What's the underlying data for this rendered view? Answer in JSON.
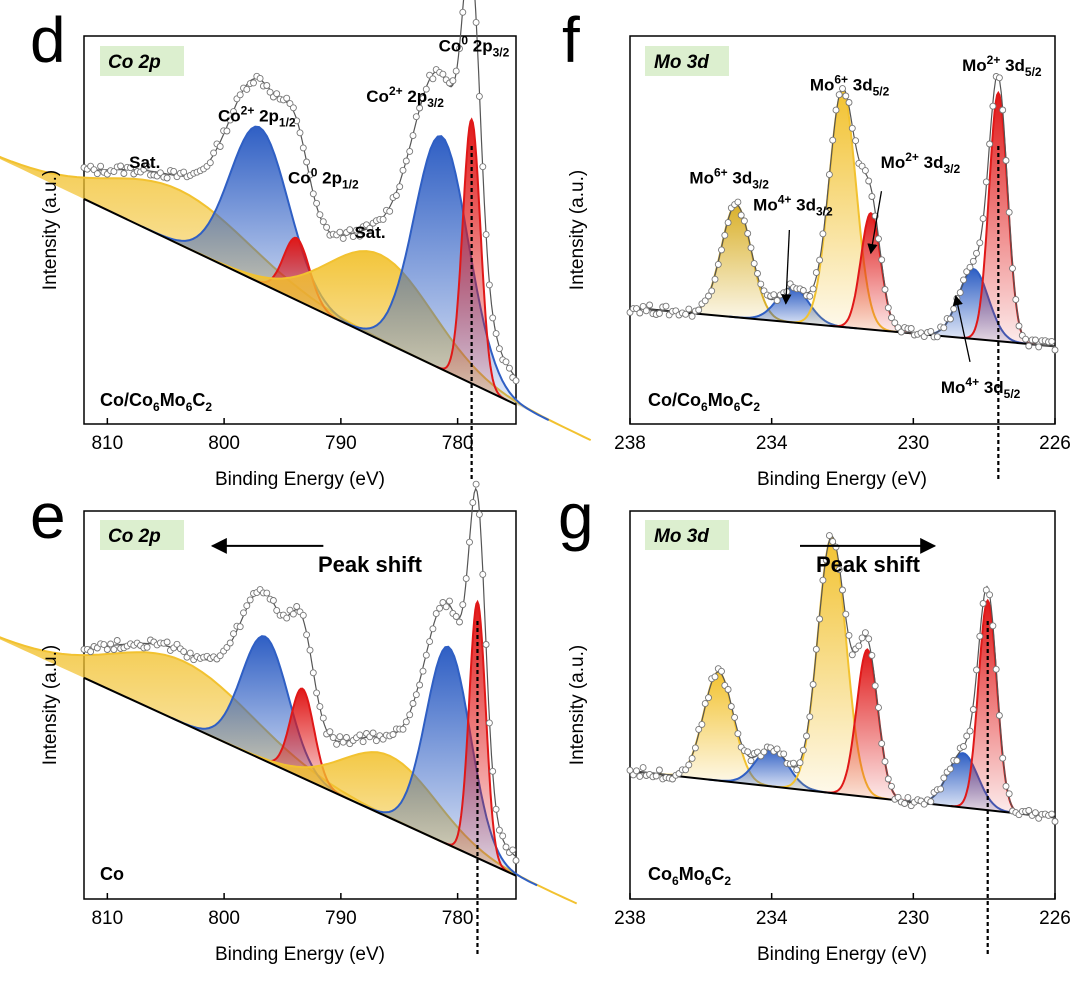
{
  "chart_data": [
    {
      "type": "xps",
      "panel": "d",
      "region_tag": "Co 2p",
      "sample_label": "Co/Co6Mo6C2",
      "xlabel": "Binding Energy (eV)",
      "ylabel": "Intensity (a.u.)",
      "xlim": [
        812,
        775
      ],
      "ylim": [
        0,
        1
      ],
      "xticks": [
        "810",
        "800",
        "790",
        "780"
      ],
      "xtick_values": [
        810,
        800,
        790,
        780
      ],
      "baseline": {
        "at_start": 0.58,
        "at_end": 0.05
      },
      "tail": {
        "start": 0.6,
        "end": 0.1
      },
      "dashed_line_at": 778.8,
      "peaks": [
        {
          "name": "Sat.",
          "center": 803.8,
          "height": 0.14,
          "width": 6.0,
          "color": "#f2c230"
        },
        {
          "name": "Co2+ 2p1/2",
          "center": 797.0,
          "height": 0.4,
          "width": 2.5,
          "color": "#2f5fc4"
        },
        {
          "name": "Co0 2p1/2",
          "center": 793.8,
          "height": 0.16,
          "width": 1.1,
          "color": "#e01818"
        },
        {
          "name": "Sat.",
          "center": 786.6,
          "height": 0.22,
          "width": 4.5,
          "color": "#f2c230"
        },
        {
          "name": "Co2+ 2p3/2",
          "center": 781.4,
          "height": 0.6,
          "width": 2.3,
          "color": "#2f5fc4"
        },
        {
          "name": "Co0 2p3/2",
          "center": 778.8,
          "height": 0.68,
          "width": 0.75,
          "color": "#e01818"
        }
      ],
      "labels": [
        {
          "text": "Sat.",
          "x": 806.8,
          "y": 0.66
        },
        {
          "base": "Co",
          "sup": "2+",
          "text": " 2p",
          "sub": "1/2",
          "x": 797.2,
          "y": 0.78
        },
        {
          "base": "Co",
          "sup": "0",
          "text": " 2p",
          "sub": "1/2",
          "x": 791.5,
          "y": 0.62
        },
        {
          "text": "Sat.",
          "x": 787.5,
          "y": 0.48
        },
        {
          "base": "Co",
          "sup": "2+",
          "text": " 2p",
          "sub": "3/2",
          "x": 784.5,
          "y": 0.83
        },
        {
          "base": "Co",
          "sup": "0",
          "text": " 2p",
          "sub": "3/2",
          "x": 778.6,
          "y": 0.96
        }
      ],
      "arrows": []
    },
    {
      "type": "xps",
      "panel": "f",
      "region_tag": "Mo 3d",
      "sample_label": "Co/Co6Mo6C2",
      "xlabel": "Binding Energy (eV)",
      "ylabel": "Intensity (a.u.)",
      "xlim": [
        238,
        226
      ],
      "ylim": [
        0,
        1
      ],
      "xticks": [
        "238",
        "234",
        "230",
        "226"
      ],
      "xtick_values": [
        238,
        234,
        230,
        226
      ],
      "baseline": {
        "at_start": 0.3,
        "at_end": 0.2
      },
      "tail": {
        "start": 0.3,
        "end": 0.2
      },
      "dashed_line_at": 227.6,
      "peaks": [
        {
          "name": "Mo6+ 3d3/2",
          "center": 235.0,
          "height": 0.29,
          "width": 0.42,
          "color": "#d9b02a"
        },
        {
          "name": "Mo4+ 3d3/2",
          "center": 233.4,
          "height": 0.09,
          "width": 0.45,
          "color": "#2f5fc4"
        },
        {
          "name": "Mo6+ 3d5/2",
          "center": 232.0,
          "height": 0.61,
          "width": 0.38,
          "color": "#f2c230"
        },
        {
          "name": "Mo2+ 3d3/2",
          "center": 231.2,
          "height": 0.3,
          "width": 0.28,
          "color": "#e01818"
        },
        {
          "name": "Mo4+ 3d5/2",
          "center": 228.3,
          "height": 0.18,
          "width": 0.42,
          "color": "#2f5fc4"
        },
        {
          "name": "Mo2+ 3d5/2",
          "center": 227.6,
          "height": 0.64,
          "width": 0.26,
          "color": "#e01818"
        }
      ],
      "labels": [
        {
          "base": "Mo",
          "sup": "6+",
          "text": " 3d",
          "sub": "3/2",
          "x": 235.2,
          "y": 0.62
        },
        {
          "base": "Mo",
          "sup": "4+",
          "text": " 3d",
          "sub": "3/2",
          "x": 233.4,
          "y": 0.55
        },
        {
          "base": "Mo",
          "sup": "6+",
          "text": " 3d",
          "sub": "5/2",
          "x": 231.8,
          "y": 0.86
        },
        {
          "base": "Mo",
          "sup": "2+",
          "text": " 3d",
          "sub": "3/2",
          "x": 229.8,
          "y": 0.66
        },
        {
          "base": "Mo",
          "sup": "2+",
          "text": " 3d",
          "sub": "5/2",
          "x": 227.5,
          "y": 0.91
        },
        {
          "base": "Mo",
          "sup": "4+",
          "text": " 3d",
          "sub": "5/2",
          "x": 228.1,
          "y": 0.08
        }
      ],
      "arrows": [
        {
          "x1": 233.5,
          "y1": 0.5,
          "x2": 233.6,
          "y2": 0.31
        },
        {
          "x1": 230.9,
          "y1": 0.6,
          "x2": 231.2,
          "y2": 0.44
        },
        {
          "x1": 228.4,
          "y1": 0.16,
          "x2": 228.8,
          "y2": 0.33
        }
      ]
    },
    {
      "type": "xps",
      "panel": "e",
      "region_tag": "Co 2p",
      "sample_label": "Co",
      "xlabel": "Binding Energy (eV)",
      "ylabel": "Intensity (a.u.)",
      "xlim": [
        812,
        775
      ],
      "ylim": [
        0,
        1
      ],
      "xticks": [
        "810",
        "800",
        "790",
        "780"
      ],
      "xtick_values": [
        810,
        800,
        790,
        780
      ],
      "baseline": {
        "at_start": 0.57,
        "at_end": 0.06
      },
      "tail": {
        "start": 0.59,
        "end": 0.1
      },
      "dashed_line_at": 778.3,
      "peak_shift_text": "Peak shift",
      "shift_arrow": {
        "x1": 791.5,
        "x2": 801.0,
        "y": 0.91
      },
      "peaks": [
        {
          "name": "Sat.",
          "center": 803.5,
          "height": 0.16,
          "width": 6.0,
          "color": "#f2c230"
        },
        {
          "name": "Co2+ 2p1/2",
          "center": 796.5,
          "height": 0.32,
          "width": 2.0,
          "color": "#2f5fc4"
        },
        {
          "name": "Co0 2p1/2",
          "center": 793.3,
          "height": 0.23,
          "width": 1.0,
          "color": "#e01818"
        },
        {
          "name": "Sat.",
          "center": 785.8,
          "height": 0.16,
          "width": 4.0,
          "color": "#f2c230"
        },
        {
          "name": "Co2+ 2p3/2",
          "center": 780.8,
          "height": 0.51,
          "width": 1.9,
          "color": "#2f5fc4"
        },
        {
          "name": "Co0 2p3/2",
          "center": 778.3,
          "height": 0.66,
          "width": 0.7,
          "color": "#e01818"
        }
      ],
      "labels": [],
      "arrows": []
    },
    {
      "type": "xps",
      "panel": "g",
      "region_tag": "Mo 3d",
      "sample_label": "Co6Mo6C2",
      "xlabel": "Binding Energy (eV)",
      "ylabel": "Intensity (a.u.)",
      "xlim": [
        238,
        226
      ],
      "ylim": [
        0,
        1
      ],
      "xticks": [
        "238",
        "234",
        "230",
        "226"
      ],
      "xtick_values": [
        238,
        234,
        230,
        226
      ],
      "baseline": {
        "at_start": 0.33,
        "at_end": 0.21
      },
      "tail": {
        "start": 0.33,
        "end": 0.21
      },
      "dashed_line_at": 227.9,
      "peak_shift_text": "Peak shift",
      "shift_arrow": {
        "x1": 233.2,
        "x2": 229.4,
        "y": 0.91
      },
      "peaks": [
        {
          "name": "Mo6+ 3d3/2",
          "center": 235.5,
          "height": 0.28,
          "width": 0.42,
          "color": "#f2c230"
        },
        {
          "name": "Mo4+ 3d3/2",
          "center": 234.0,
          "height": 0.1,
          "width": 0.45,
          "color": "#2f5fc4"
        },
        {
          "name": "Mo6+ 3d5/2",
          "center": 232.3,
          "height": 0.66,
          "width": 0.4,
          "color": "#f2c230"
        },
        {
          "name": "Mo2+ 3d3/2",
          "center": 231.3,
          "height": 0.38,
          "width": 0.3,
          "color": "#e01818"
        },
        {
          "name": "Mo4+ 3d5/2",
          "center": 228.6,
          "height": 0.14,
          "width": 0.42,
          "color": "#2f5fc4"
        },
        {
          "name": "Mo2+ 3d5/2",
          "center": 227.9,
          "height": 0.54,
          "width": 0.26,
          "color": "#e01818"
        }
      ],
      "labels": [],
      "arrows": []
    }
  ]
}
